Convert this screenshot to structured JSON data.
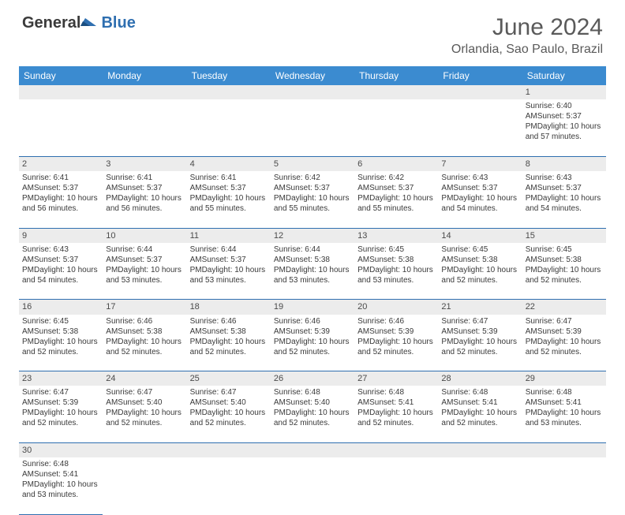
{
  "logo": {
    "text1": "General",
    "text2": "Blue"
  },
  "title": "June 2024",
  "location": "Orlandia, Sao Paulo, Brazil",
  "colors": {
    "header_bg": "#3b8bd0",
    "header_fg": "#ffffff",
    "daynum_bg": "#ececec",
    "border": "#2f6fb0",
    "text": "#3a3a3a",
    "title_fg": "#5a5a5a"
  },
  "weekdays": [
    "Sunday",
    "Monday",
    "Tuesday",
    "Wednesday",
    "Thursday",
    "Friday",
    "Saturday"
  ],
  "weeks": [
    [
      null,
      null,
      null,
      null,
      null,
      null,
      {
        "n": "1",
        "sr": "6:40 AM",
        "ss": "5:37 PM",
        "dl": "10 hours and 57 minutes."
      }
    ],
    [
      {
        "n": "2",
        "sr": "6:41 AM",
        "ss": "5:37 PM",
        "dl": "10 hours and 56 minutes."
      },
      {
        "n": "3",
        "sr": "6:41 AM",
        "ss": "5:37 PM",
        "dl": "10 hours and 56 minutes."
      },
      {
        "n": "4",
        "sr": "6:41 AM",
        "ss": "5:37 PM",
        "dl": "10 hours and 55 minutes."
      },
      {
        "n": "5",
        "sr": "6:42 AM",
        "ss": "5:37 PM",
        "dl": "10 hours and 55 minutes."
      },
      {
        "n": "6",
        "sr": "6:42 AM",
        "ss": "5:37 PM",
        "dl": "10 hours and 55 minutes."
      },
      {
        "n": "7",
        "sr": "6:43 AM",
        "ss": "5:37 PM",
        "dl": "10 hours and 54 minutes."
      },
      {
        "n": "8",
        "sr": "6:43 AM",
        "ss": "5:37 PM",
        "dl": "10 hours and 54 minutes."
      }
    ],
    [
      {
        "n": "9",
        "sr": "6:43 AM",
        "ss": "5:37 PM",
        "dl": "10 hours and 54 minutes."
      },
      {
        "n": "10",
        "sr": "6:44 AM",
        "ss": "5:37 PM",
        "dl": "10 hours and 53 minutes."
      },
      {
        "n": "11",
        "sr": "6:44 AM",
        "ss": "5:37 PM",
        "dl": "10 hours and 53 minutes."
      },
      {
        "n": "12",
        "sr": "6:44 AM",
        "ss": "5:38 PM",
        "dl": "10 hours and 53 minutes."
      },
      {
        "n": "13",
        "sr": "6:45 AM",
        "ss": "5:38 PM",
        "dl": "10 hours and 53 minutes."
      },
      {
        "n": "14",
        "sr": "6:45 AM",
        "ss": "5:38 PM",
        "dl": "10 hours and 52 minutes."
      },
      {
        "n": "15",
        "sr": "6:45 AM",
        "ss": "5:38 PM",
        "dl": "10 hours and 52 minutes."
      }
    ],
    [
      {
        "n": "16",
        "sr": "6:45 AM",
        "ss": "5:38 PM",
        "dl": "10 hours and 52 minutes."
      },
      {
        "n": "17",
        "sr": "6:46 AM",
        "ss": "5:38 PM",
        "dl": "10 hours and 52 minutes."
      },
      {
        "n": "18",
        "sr": "6:46 AM",
        "ss": "5:38 PM",
        "dl": "10 hours and 52 minutes."
      },
      {
        "n": "19",
        "sr": "6:46 AM",
        "ss": "5:39 PM",
        "dl": "10 hours and 52 minutes."
      },
      {
        "n": "20",
        "sr": "6:46 AM",
        "ss": "5:39 PM",
        "dl": "10 hours and 52 minutes."
      },
      {
        "n": "21",
        "sr": "6:47 AM",
        "ss": "5:39 PM",
        "dl": "10 hours and 52 minutes."
      },
      {
        "n": "22",
        "sr": "6:47 AM",
        "ss": "5:39 PM",
        "dl": "10 hours and 52 minutes."
      }
    ],
    [
      {
        "n": "23",
        "sr": "6:47 AM",
        "ss": "5:39 PM",
        "dl": "10 hours and 52 minutes."
      },
      {
        "n": "24",
        "sr": "6:47 AM",
        "ss": "5:40 PM",
        "dl": "10 hours and 52 minutes."
      },
      {
        "n": "25",
        "sr": "6:47 AM",
        "ss": "5:40 PM",
        "dl": "10 hours and 52 minutes."
      },
      {
        "n": "26",
        "sr": "6:48 AM",
        "ss": "5:40 PM",
        "dl": "10 hours and 52 minutes."
      },
      {
        "n": "27",
        "sr": "6:48 AM",
        "ss": "5:41 PM",
        "dl": "10 hours and 52 minutes."
      },
      {
        "n": "28",
        "sr": "6:48 AM",
        "ss": "5:41 PM",
        "dl": "10 hours and 52 minutes."
      },
      {
        "n": "29",
        "sr": "6:48 AM",
        "ss": "5:41 PM",
        "dl": "10 hours and 53 minutes."
      }
    ],
    [
      {
        "n": "30",
        "sr": "6:48 AM",
        "ss": "5:41 PM",
        "dl": "10 hours and 53 minutes."
      },
      null,
      null,
      null,
      null,
      null,
      null
    ]
  ],
  "labels": {
    "sunrise": "Sunrise:",
    "sunset": "Sunset:",
    "daylight": "Daylight:"
  }
}
